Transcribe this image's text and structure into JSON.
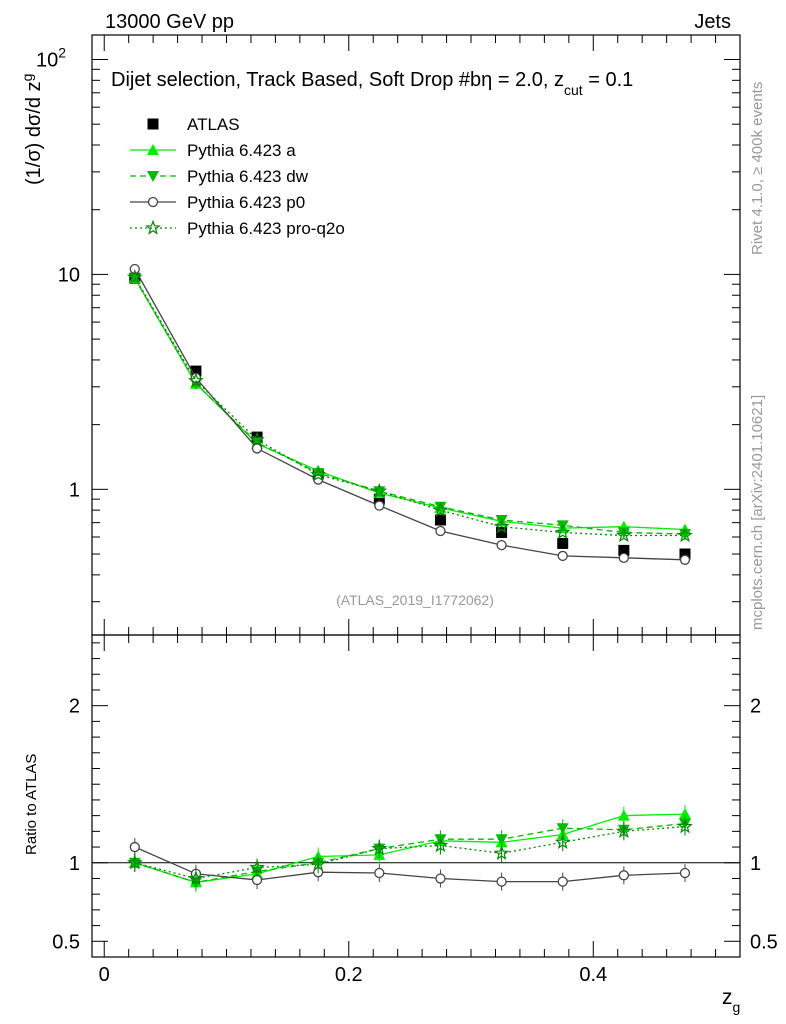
{
  "header": {
    "left": "13000 GeV pp",
    "right": "Jets"
  },
  "side_label": "Rivet 4.1.0, ≥ 400k events",
  "side_label2": "mcplots.cern.ch [arXiv:2401.10621]",
  "watermark": "(ATLAS_2019_I1772062)",
  "colors": {
    "atlas": "#000000",
    "pythia_a": "#00ee00",
    "pythia_dw": "#00bb00",
    "pythia_p0": "#444444",
    "pythia_proq2o": "#008800",
    "watermark": "#999999",
    "side": "#999999"
  },
  "chart_data": [
    {
      "type": "line",
      "panel": "main",
      "title": "Dijet selection, Track Based, Soft Drop #bη = 2.0, z_cut = 0.1",
      "title_main": "Dijet selection, Track Based, Soft Drop #bη = 2.0, z",
      "title_sub": "cut",
      "title_tail": " = 0.1",
      "ylabel": "(1/σ) dσ/d z",
      "ylabel_sub": "g",
      "yscale": "log",
      "ylim": [
        0.21,
        130
      ],
      "xlim": [
        -0.01,
        0.52
      ],
      "yticks": [
        {
          "value": 1,
          "label": "1"
        },
        {
          "value": 10,
          "label": "10"
        },
        {
          "value": 100,
          "label": "10",
          "sup": "2"
        }
      ],
      "x": [
        0.025,
        0.075,
        0.125,
        0.175,
        0.225,
        0.275,
        0.325,
        0.375,
        0.425,
        0.475
      ],
      "series": [
        {
          "name": "ATLAS",
          "marker": "square",
          "values": [
            9.6,
            3.55,
            1.75,
            1.18,
            0.9,
            0.72,
            0.63,
            0.56,
            0.52,
            0.5
          ]
        },
        {
          "name": "Pythia 6.423 a",
          "marker": "triangle-up",
          "style": "solid",
          "values": [
            9.6,
            3.1,
            1.63,
            1.22,
            0.96,
            0.82,
            0.71,
            0.66,
            0.67,
            0.65
          ]
        },
        {
          "name": "Pythia 6.423 dw",
          "marker": "triangle-down",
          "style": "dashed",
          "values": [
            9.6,
            3.1,
            1.65,
            1.19,
            0.98,
            0.83,
            0.72,
            0.68,
            0.63,
            0.62
          ]
        },
        {
          "name": "Pythia 6.423 p0",
          "marker": "circle-open",
          "style": "solid",
          "values": [
            10.6,
            3.3,
            1.55,
            1.11,
            0.84,
            0.64,
            0.55,
            0.49,
            0.48,
            0.47
          ]
        },
        {
          "name": "Pythia 6.423 pro-q2o",
          "marker": "star",
          "style": "dotted",
          "values": [
            9.7,
            3.2,
            1.7,
            1.17,
            0.98,
            0.8,
            0.67,
            0.63,
            0.61,
            0.61
          ]
        }
      ]
    },
    {
      "type": "line",
      "panel": "ratio",
      "ylabel": "Ratio to ATLAS",
      "xlabel": "z",
      "xlabel_sub": "g",
      "ylim": [
        0.4,
        2.45
      ],
      "xlim": [
        -0.01,
        0.52
      ],
      "yticks": [
        {
          "value": 0.5,
          "label": "0.5"
        },
        {
          "value": 1,
          "label": "1"
        },
        {
          "value": 2,
          "label": "2"
        }
      ],
      "xticks": [
        {
          "value": 0,
          "label": "0"
        },
        {
          "value": 0.2,
          "label": "0.2"
        },
        {
          "value": 0.4,
          "label": "0.4"
        }
      ],
      "x": [
        0.025,
        0.075,
        0.125,
        0.175,
        0.225,
        0.275,
        0.325,
        0.375,
        0.425,
        0.475
      ],
      "series": [
        {
          "name": "Pythia 6.423 a",
          "values": [
            1.0,
            0.875,
            0.93,
            1.04,
            1.05,
            1.14,
            1.13,
            1.18,
            1.3,
            1.31
          ]
        },
        {
          "name": "Pythia 6.423 dw",
          "values": [
            1.0,
            0.875,
            0.945,
            1.0,
            1.09,
            1.15,
            1.15,
            1.22,
            1.21,
            1.25
          ]
        },
        {
          "name": "Pythia 6.423 p0",
          "values": [
            1.1,
            0.93,
            0.89,
            0.94,
            0.935,
            0.9,
            0.88,
            0.88,
            0.92,
            0.935
          ]
        },
        {
          "name": "Pythia 6.423 pro-q2o",
          "values": [
            1.0,
            0.9,
            0.97,
            0.99,
            1.09,
            1.11,
            1.06,
            1.13,
            1.2,
            1.23
          ]
        }
      ]
    }
  ]
}
